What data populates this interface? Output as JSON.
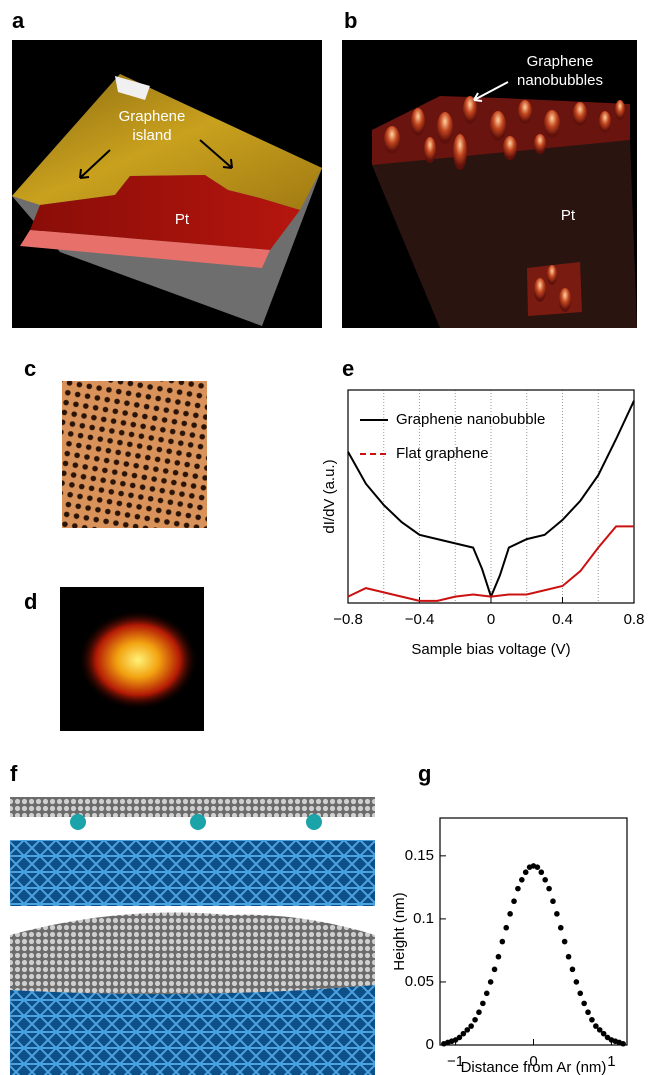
{
  "panels": {
    "a": {
      "label": "a",
      "annotation_lines": [
        "Graphene",
        "island"
      ],
      "substrate": "Pt"
    },
    "b": {
      "label": "b",
      "annotation_lines": [
        "Graphene",
        "nanobubbles"
      ],
      "substrate": "Pt"
    },
    "c": {
      "label": "c"
    },
    "d": {
      "label": "d"
    },
    "f": {
      "label": "f"
    }
  },
  "chart_data": [
    {
      "type": "line",
      "panel_label": "e",
      "x_label": "Sample bias voltage (V)",
      "y_label": "dI/dV (a.u.)",
      "xlim": [
        -0.8,
        0.8
      ],
      "ylim": [
        0,
        10
      ],
      "xticks": [
        {
          "value": -0.8,
          "label": "−0.8"
        },
        {
          "value": -0.4,
          "label": "−0.4"
        },
        0,
        0.4,
        0.8
      ],
      "xgrid": [
        -0.6,
        -0.4,
        -0.2,
        0,
        0.2,
        0.4,
        0.6
      ],
      "series": [
        {
          "name": "Graphene nanobubble",
          "color": "#000000",
          "x": [
            -0.8,
            -0.7,
            -0.6,
            -0.5,
            -0.4,
            -0.3,
            -0.2,
            -0.1,
            -0.05,
            0,
            0.05,
            0.1,
            0.2,
            0.3,
            0.4,
            0.5,
            0.6,
            0.7,
            0.8
          ],
          "values": [
            7.1,
            5.6,
            4.6,
            3.8,
            3.2,
            3.0,
            2.8,
            2.6,
            1.6,
            0.3,
            1.3,
            2.6,
            3.0,
            3.2,
            3.9,
            4.8,
            6.0,
            7.7,
            9.5
          ]
        },
        {
          "name": "Flat graphene",
          "color": "#cc1111",
          "x": [
            -0.8,
            -0.7,
            -0.6,
            -0.5,
            -0.4,
            -0.3,
            -0.2,
            -0.1,
            0,
            0.1,
            0.2,
            0.3,
            0.4,
            0.5,
            0.6,
            0.7,
            0.8
          ],
          "values": [
            0.3,
            0.7,
            0.5,
            0.3,
            0.1,
            0.1,
            0.3,
            0.4,
            0.3,
            0.4,
            0.4,
            0.6,
            0.8,
            1.5,
            2.6,
            3.6,
            3.6
          ]
        }
      ]
    },
    {
      "type": "scatter",
      "panel_label": "g",
      "x_label": "Distance from Ar (nm)",
      "y_label": "Height (nm)",
      "xlim": [
        -1.2,
        1.2
      ],
      "ylim": [
        0,
        0.18
      ],
      "xticks": [
        {
          "value": -1,
          "label": "−1"
        },
        0,
        1
      ],
      "yticks": [
        0,
        0.05,
        0.1,
        0.15
      ],
      "series": [
        {
          "color": "#000000",
          "x": [
            -1.15,
            -1.1,
            -1.05,
            -1,
            -0.95,
            -0.9,
            -0.85,
            -0.8,
            -0.75,
            -0.7,
            -0.65,
            -0.6,
            -0.55,
            -0.5,
            -0.45,
            -0.4,
            -0.35,
            -0.3,
            -0.25,
            -0.2,
            -0.15,
            -0.1,
            -0.05,
            0,
            0.05,
            0.1,
            0.15,
            0.2,
            0.25,
            0.3,
            0.35,
            0.4,
            0.45,
            0.5,
            0.55,
            0.6,
            0.65,
            0.7,
            0.75,
            0.8,
            0.85,
            0.9,
            0.95,
            1,
            1.05,
            1.1,
            1.15
          ],
          "values": [
            0.001,
            0.002,
            0.003,
            0.004,
            0.006,
            0.009,
            0.012,
            0.015,
            0.02,
            0.026,
            0.033,
            0.041,
            0.05,
            0.06,
            0.07,
            0.082,
            0.093,
            0.104,
            0.114,
            0.124,
            0.131,
            0.137,
            0.141,
            0.142,
            0.141,
            0.137,
            0.131,
            0.124,
            0.114,
            0.104,
            0.093,
            0.082,
            0.07,
            0.06,
            0.05,
            0.041,
            0.033,
            0.026,
            0.02,
            0.015,
            0.012,
            0.009,
            0.006,
            0.004,
            0.003,
            0.002,
            0.001
          ]
        }
      ]
    }
  ]
}
